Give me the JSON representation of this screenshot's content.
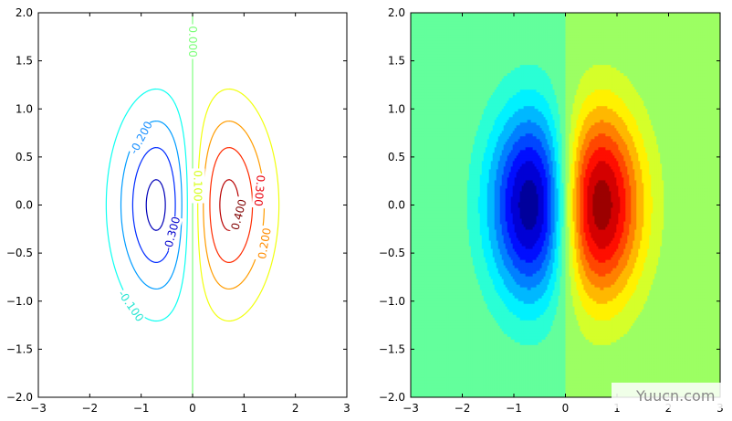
{
  "chart_data": [
    {
      "type": "contour",
      "function": "x*exp(-x^2-y^2)",
      "xlim": [
        -3,
        3
      ],
      "ylim": [
        -2,
        2
      ],
      "x_ticks": [
        "−3",
        "−2",
        "−1",
        "0",
        "1",
        "2",
        "3"
      ],
      "y_ticks": [
        "2.0",
        "1.5",
        "1.0",
        "0.5",
        "0.0",
        "−0.5",
        "−1.0",
        "−1.5",
        "−2.0"
      ],
      "levels": [
        -0.4,
        -0.3,
        -0.2,
        -0.1,
        0.0,
        0.1,
        0.2,
        0.3,
        0.4
      ],
      "contour_labels": [
        {
          "text": "0.000",
          "x": 0.0,
          "y": 1.7,
          "rotation": 90,
          "color": "#7dff7a"
        },
        {
          "text": "-0.200",
          "x": -1.0,
          "y": 0.7,
          "rotation": -62,
          "color": "#1b90ff"
        },
        {
          "text": "-0.300",
          "x": -0.4,
          "y": -0.3,
          "rotation": -75,
          "color": "#0000cd"
        },
        {
          "text": "-0.100",
          "x": -1.2,
          "y": -1.05,
          "rotation": 55,
          "color": "#27e5d2"
        },
        {
          "text": "0.100",
          "x": 0.1,
          "y": 0.2,
          "rotation": 90,
          "color": "#d8ff1e"
        },
        {
          "text": "0.400",
          "x": 0.9,
          "y": -0.1,
          "rotation": -75,
          "color": "#800000"
        },
        {
          "text": "0.300",
          "x": 1.3,
          "y": 0.15,
          "rotation": 95,
          "color": "#e8000d"
        },
        {
          "text": "0.200",
          "x": 1.4,
          "y": -0.4,
          "rotation": -80,
          "color": "#ff8c00"
        }
      ]
    },
    {
      "type": "heatmap",
      "function": "x*exp(-x^2-y^2)",
      "xlim": [
        -3,
        3
      ],
      "ylim": [
        -2,
        2
      ],
      "x_ticks": [
        "−3",
        "−2",
        "−1",
        "0",
        "1",
        "2",
        "3"
      ],
      "y_ticks": [
        "2.0",
        "1.5",
        "1.0",
        "0.5",
        "0.0",
        "−0.5",
        "−1.0",
        "−1.5",
        "−2.0"
      ],
      "colormap": "jet",
      "vrange": [
        -0.45,
        0.45
      ]
    }
  ],
  "watermark": {
    "text": "Yuucn.com"
  }
}
